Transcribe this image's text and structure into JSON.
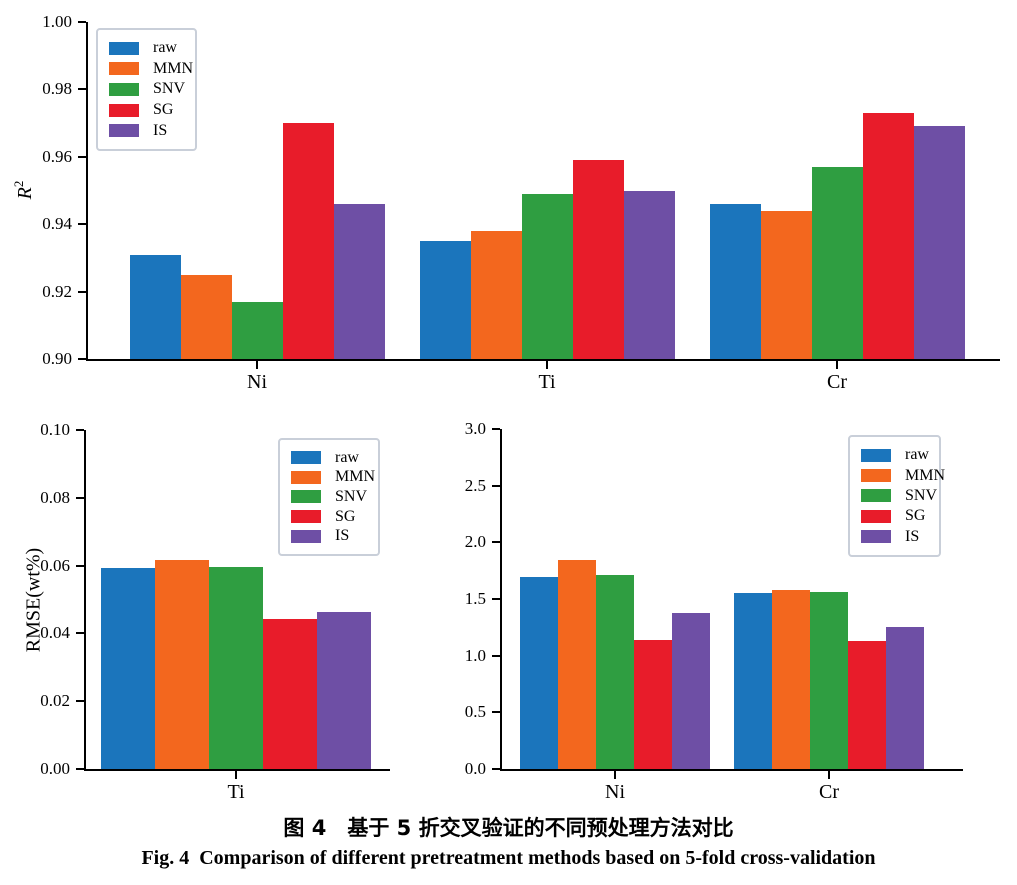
{
  "palette": {
    "raw": "#1b75bc",
    "MMN": "#f3671e",
    "SNV": "#2f9e41",
    "SG": "#e81c2a",
    "IS": "#6e4fa5"
  },
  "legend_labels": [
    "raw",
    "MMN",
    "SNV",
    "SG",
    "IS"
  ],
  "chart_data": [
    {
      "type": "bar",
      "title": "",
      "ylabel_text": "R²",
      "ylabel": {
        "base": "R",
        "sup": "2",
        "italic": true
      },
      "ylim": [
        0.9,
        1.0
      ],
      "yticks": [
        "1.00",
        "0.98",
        "0.96",
        "0.94",
        "0.92",
        "0.90"
      ],
      "categories": [
        "Ni",
        "Ti",
        "Cr"
      ],
      "series": [
        {
          "name": "raw",
          "values": [
            0.931,
            0.935,
            0.946
          ]
        },
        {
          "name": "MMN",
          "values": [
            0.925,
            0.938,
            0.944
          ]
        },
        {
          "name": "SNV",
          "values": [
            0.917,
            0.949,
            0.957
          ]
        },
        {
          "name": "SG",
          "values": [
            0.97,
            0.959,
            0.973
          ]
        },
        {
          "name": "IS",
          "values": [
            0.946,
            0.95,
            0.969
          ]
        }
      ],
      "legend_position": "top-left",
      "grid": false
    },
    {
      "type": "bar",
      "title": "",
      "ylabel_text": "RMSE(wt%)",
      "ylabel": {
        "base": "RMSE(wt%)",
        "sup": "",
        "italic": false
      },
      "ylim": [
        0.0,
        0.1
      ],
      "yticks": [
        "0.10",
        "0.08",
        "0.06",
        "0.04",
        "0.02",
        "0.00"
      ],
      "categories": [
        "Ti"
      ],
      "series": [
        {
          "name": "raw",
          "values": [
            0.0594
          ]
        },
        {
          "name": "MMN",
          "values": [
            0.0617
          ]
        },
        {
          "name": "SNV",
          "values": [
            0.0596
          ]
        },
        {
          "name": "SG",
          "values": [
            0.0442
          ]
        },
        {
          "name": "IS",
          "values": [
            0.0462
          ]
        }
      ],
      "legend_position": "top-right",
      "grid": false
    },
    {
      "type": "bar",
      "title": "",
      "ylabel_text": "",
      "ylim": [
        0.0,
        3.0
      ],
      "yticks": [
        "3.0",
        "2.5",
        "2.0",
        "1.5",
        "1.0",
        "0.5",
        "0.0"
      ],
      "categories": [
        "Ni",
        "Cr"
      ],
      "series": [
        {
          "name": "raw",
          "values": [
            1.69,
            1.55
          ]
        },
        {
          "name": "MMN",
          "values": [
            1.84,
            1.58
          ]
        },
        {
          "name": "SNV",
          "values": [
            1.71,
            1.56
          ]
        },
        {
          "name": "SG",
          "values": [
            1.14,
            1.13
          ]
        },
        {
          "name": "IS",
          "values": [
            1.38,
            1.25
          ]
        }
      ],
      "legend_position": "top-right",
      "grid": false
    }
  ],
  "figure": {
    "caption_zh": "图 4　基于 5 折交叉验证的不同预处理方法对比",
    "caption_en": "Fig. 4  Comparison of different pretreatment methods based on 5-fold cross-validation"
  }
}
